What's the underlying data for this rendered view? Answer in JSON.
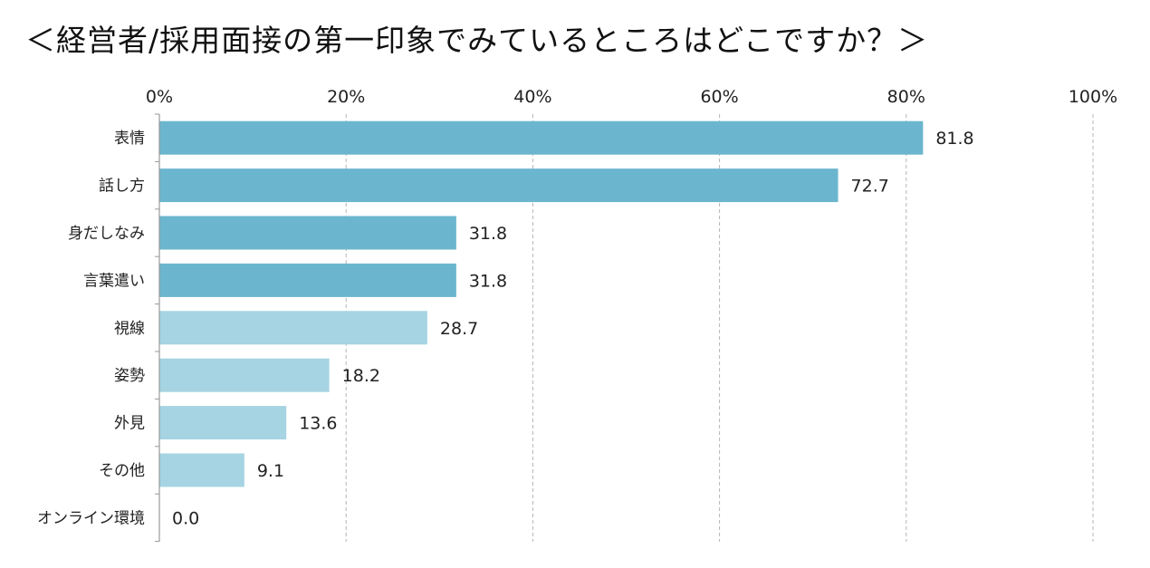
{
  "title": "＜経営者/採用面接の第一印象でみているところはどこですか？＞",
  "chart_data": {
    "type": "bar",
    "orientation": "horizontal",
    "title": "＜経営者/採用面接の第一印象でみているところはどこですか？＞",
    "xlabel": "",
    "ylabel": "",
    "xlim": [
      0,
      100
    ],
    "x_ticks": [
      0,
      20,
      40,
      60,
      80,
      100
    ],
    "x_tick_labels": [
      "0%",
      "20%",
      "40%",
      "60%",
      "80%",
      "100%"
    ],
    "x_axis_position": "top",
    "grid": "vertical dashed",
    "categories": [
      "表情",
      "話し方",
      "身だしなみ",
      "言葉遣い",
      "視線",
      "姿勢",
      "外見",
      "その他",
      "オンライン環境"
    ],
    "values": [
      81.8,
      72.7,
      31.8,
      31.8,
      28.7,
      18.2,
      13.6,
      9.1,
      0.0
    ],
    "value_labels": [
      "81.8",
      "72.7",
      "31.8",
      "31.8",
      "28.7",
      "18.2",
      "13.6",
      "9.1",
      "0.0"
    ],
    "colors": [
      "#6bb6ce",
      "#6bb6ce",
      "#6bb6ce",
      "#6bb6ce",
      "#a6d4e2",
      "#a6d4e2",
      "#a6d4e2",
      "#a6d4e2",
      "#a6d4e2"
    ],
    "grid_color": "#b5b5b5",
    "axis_color": "#999999"
  }
}
